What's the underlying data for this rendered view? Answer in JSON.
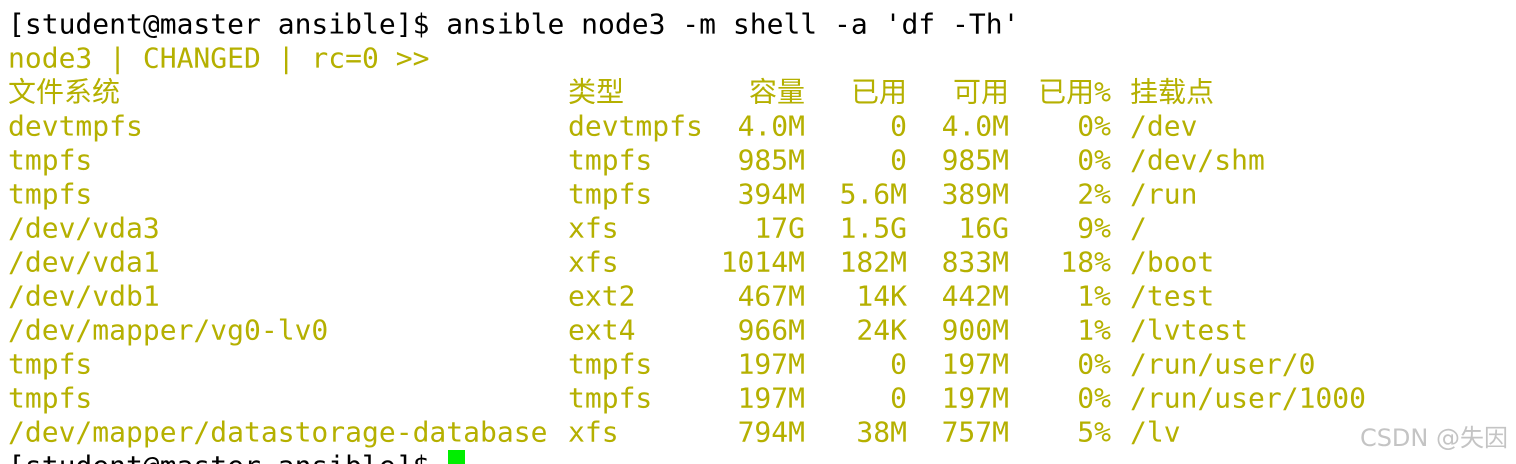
{
  "terminal": {
    "command_line": "[student@master ansible]$ ansible node3 -m shell -a 'df -Th'",
    "result_line": "node3 | CHANGED | rc=0 >>",
    "header": [
      "文件系统",
      "类型",
      "容量",
      "已用",
      "可用",
      "已用%",
      "挂载点"
    ],
    "rows": [
      [
        "devtmpfs",
        "devtmpfs",
        "4.0M",
        "0",
        "4.0M",
        "0%",
        "/dev"
      ],
      [
        "tmpfs",
        "tmpfs",
        "985M",
        "0",
        "985M",
        "0%",
        "/dev/shm"
      ],
      [
        "tmpfs",
        "tmpfs",
        "394M",
        "5.6M",
        "389M",
        "2%",
        "/run"
      ],
      [
        "/dev/vda3",
        "xfs",
        "17G",
        "1.5G",
        "16G",
        "9%",
        "/"
      ],
      [
        "/dev/vda1",
        "xfs",
        "1014M",
        "182M",
        "833M",
        "18%",
        "/boot"
      ],
      [
        "/dev/vdb1",
        "ext2",
        "467M",
        "14K",
        "442M",
        "1%",
        "/test"
      ],
      [
        "/dev/mapper/vg0-lv0",
        "ext4",
        "966M",
        "24K",
        "900M",
        "1%",
        "/lvtest"
      ],
      [
        "tmpfs",
        "tmpfs",
        "197M",
        "0",
        "197M",
        "0%",
        "/run/user/0"
      ],
      [
        "tmpfs",
        "tmpfs",
        "197M",
        "0",
        "197M",
        "0%",
        "/run/user/1000"
      ],
      [
        "/dev/mapper/datastorage-database",
        "xfs",
        "794M",
        "38M",
        "757M",
        "5%",
        "/lv"
      ]
    ],
    "prompt": "[student@master ansible]$",
    "watermark": "CSDN @失因"
  }
}
